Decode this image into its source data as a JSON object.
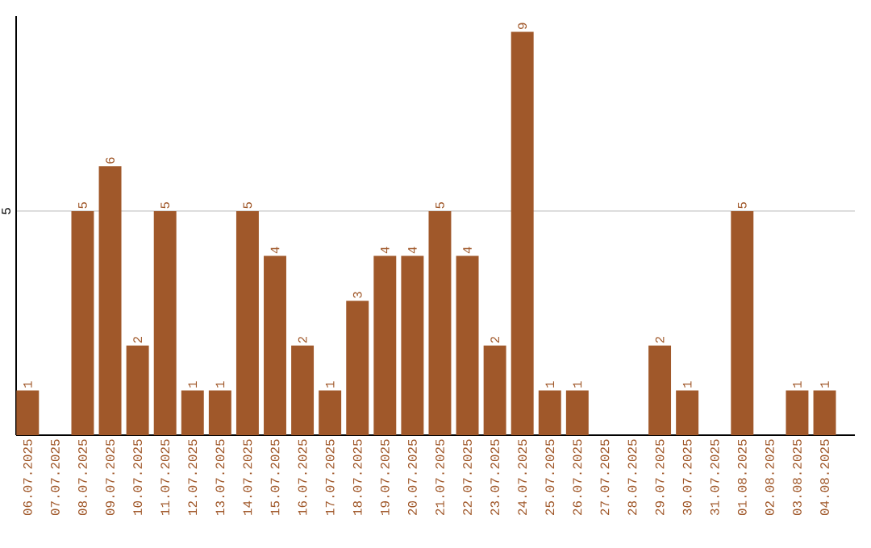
{
  "chart_data": {
    "type": "bar",
    "categories": [
      "06.07.2025",
      "07.07.2025",
      "08.07.2025",
      "09.07.2025",
      "10.07.2025",
      "11.07.2025",
      "12.07.2025",
      "13.07.2025",
      "14.07.2025",
      "15.07.2025",
      "16.07.2025",
      "17.07.2025",
      "18.07.2025",
      "19.07.2025",
      "20.07.2025",
      "21.07.2025",
      "22.07.2025",
      "23.07.2025",
      "24.07.2025",
      "25.07.2025",
      "26.07.2025",
      "27.07.2025",
      "28.07.2025",
      "29.07.2025",
      "30.07.2025",
      "31.07.2025",
      "01.08.2025",
      "02.08.2025",
      "03.08.2025",
      "04.08.2025"
    ],
    "values": [
      1,
      0,
      5,
      6,
      2,
      5,
      1,
      1,
      5,
      4,
      2,
      1,
      3,
      4,
      4,
      5,
      4,
      2,
      9,
      1,
      1,
      0,
      0,
      2,
      1,
      0,
      5,
      0,
      1,
      1
    ],
    "value_labels": [
      "1",
      null,
      "5",
      "6",
      "2",
      "5",
      "1",
      "1",
      "5",
      "4",
      "2",
      "1",
      "3",
      "4",
      "4",
      "5",
      "4",
      "2",
      "9",
      "1",
      "1",
      null,
      null,
      "2",
      "1",
      null,
      "5",
      null,
      "1",
      "1"
    ],
    "color": "#a0582a",
    "ylim": [
      0,
      9.35
    ],
    "yticks": [
      5
    ],
    "grid": "y"
  }
}
